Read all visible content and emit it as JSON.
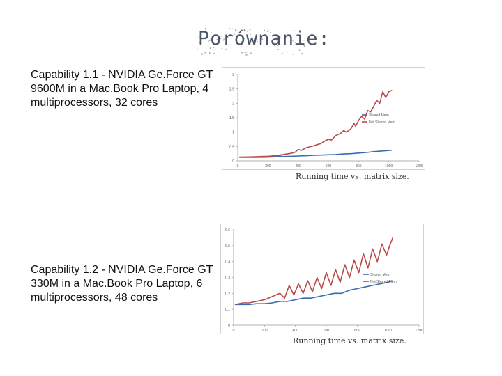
{
  "slide": {
    "title": "Porównanie:",
    "description_1": "Capability 1.1 - NVIDIA Ge.Force GT 9600M in a Mac.Book Pro Laptop, 4 multiprocessors, 32 cores",
    "description_2": "Capability 1.2 - NVIDIA Ge.Force GT 330M in a Mac.Book Pro Laptop, 6 multiprocessors, 48 cores",
    "caption_1": "Running time vs. matrix size.",
    "caption_2": "Running time vs. matrix size."
  },
  "chart_data": [
    {
      "type": "line",
      "title": "Running time vs. matrix size.",
      "xlim": [
        0,
        1200
      ],
      "ylim": [
        0,
        3
      ],
      "xticks": [
        0,
        200,
        400,
        600,
        800,
        1000,
        1200
      ],
      "xtick_labels": [
        "0",
        "200",
        "400",
        "600",
        "800",
        "1000",
        "1200"
      ],
      "yticks": [
        0,
        0.5,
        1,
        1.5,
        2,
        2.5,
        3
      ],
      "ytick_labels": [
        "0",
        "0.5",
        "1",
        "1.5",
        "2",
        "2.5",
        "3"
      ],
      "legend_position": "right",
      "series": [
        {
          "name": "Shared Mem",
          "color": "#3a6bb0",
          "x": [
            10,
            100,
            200,
            250,
            280,
            300,
            350,
            400,
            450,
            500,
            550,
            600,
            650,
            700,
            750,
            800,
            850,
            900,
            950,
            1000,
            1020
          ],
          "y": [
            0.12,
            0.12,
            0.13,
            0.14,
            0.17,
            0.15,
            0.16,
            0.17,
            0.18,
            0.19,
            0.2,
            0.21,
            0.22,
            0.24,
            0.25,
            0.27,
            0.29,
            0.32,
            0.34,
            0.36,
            0.37
          ]
        },
        {
          "name": "Not Shared Mem",
          "color": "#b84a4a",
          "x": [
            10,
            100,
            200,
            250,
            300,
            350,
            380,
            400,
            420,
            450,
            500,
            550,
            580,
            600,
            620,
            650,
            680,
            700,
            720,
            750,
            770,
            780,
            800,
            820,
            840,
            860,
            880,
            900,
            920,
            940,
            960,
            980,
            1000,
            1020
          ],
          "y": [
            0.13,
            0.14,
            0.16,
            0.18,
            0.22,
            0.26,
            0.3,
            0.4,
            0.36,
            0.45,
            0.52,
            0.6,
            0.7,
            0.75,
            0.72,
            0.88,
            0.95,
            1.05,
            1.0,
            1.12,
            1.3,
            1.2,
            1.4,
            1.55,
            1.45,
            1.75,
            1.7,
            1.9,
            2.1,
            2.0,
            2.4,
            2.2,
            2.4,
            2.45
          ]
        }
      ]
    },
    {
      "type": "line",
      "title": "Running time vs. matrix size.",
      "xlim": [
        0,
        1200
      ],
      "ylim": [
        0,
        0.6
      ],
      "xticks": [
        0,
        200,
        400,
        600,
        800,
        1000,
        1200
      ],
      "xtick_labels": [
        "0",
        "200",
        "400",
        "600",
        "800",
        "1000",
        "1200"
      ],
      "yticks": [
        0,
        0.1,
        0.2,
        0.3,
        0.4,
        0.5,
        0.6
      ],
      "ytick_labels": [
        "0",
        "0.1",
        "0.2",
        "0.3",
        "0.4",
        "0.5",
        "0.6"
      ],
      "legend_position": "right",
      "series": [
        {
          "name": "Shared Mem",
          "color": "#3a6bb0",
          "x": [
            10,
            60,
            100,
            150,
            200,
            250,
            300,
            350,
            400,
            450,
            500,
            550,
            600,
            650,
            700,
            750,
            800,
            850,
            900,
            950,
            1000,
            1030
          ],
          "y": [
            0.13,
            0.13,
            0.13,
            0.135,
            0.135,
            0.14,
            0.15,
            0.15,
            0.16,
            0.17,
            0.17,
            0.18,
            0.19,
            0.2,
            0.2,
            0.22,
            0.23,
            0.24,
            0.25,
            0.26,
            0.27,
            0.28
          ]
        },
        {
          "name": "Not Shared Mem",
          "color": "#b84a4a",
          "x": [
            10,
            60,
            100,
            150,
            200,
            250,
            300,
            330,
            360,
            390,
            420,
            450,
            480,
            510,
            540,
            570,
            600,
            630,
            660,
            690,
            720,
            750,
            780,
            810,
            840,
            870,
            900,
            930,
            960,
            990,
            1010,
            1030
          ],
          "y": [
            0.13,
            0.14,
            0.14,
            0.15,
            0.16,
            0.18,
            0.2,
            0.17,
            0.25,
            0.19,
            0.26,
            0.2,
            0.28,
            0.21,
            0.3,
            0.23,
            0.33,
            0.25,
            0.35,
            0.27,
            0.38,
            0.3,
            0.41,
            0.33,
            0.45,
            0.36,
            0.48,
            0.4,
            0.51,
            0.44,
            0.5,
            0.55
          ]
        }
      ]
    }
  ]
}
